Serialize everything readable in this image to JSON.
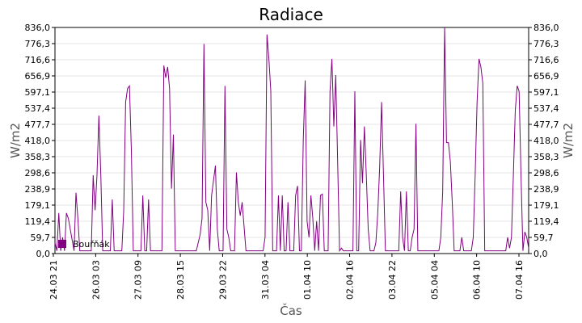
{
  "chart_data": {
    "type": "line",
    "title": "Radiace",
    "xlabel": "Čas",
    "ylabel": "W/m2",
    "ylabel_right": "W/m2",
    "y_ticks": [
      "0,0",
      "59,7",
      "119,4",
      "179,1",
      "238,9",
      "298,6",
      "358,3",
      "418,0",
      "477,7",
      "537,4",
      "597,1",
      "656,9",
      "716,6",
      "776,3",
      "836,0"
    ],
    "ylim": [
      0,
      836
    ],
    "x_ticks": [
      "24.03 21",
      "26.03 03",
      "27.03 09",
      "28.03 15",
      "29.03 22",
      "31.03 04",
      "01.04 10",
      "02.04 16",
      "03.04 22",
      "05.04 04",
      "06.04 10",
      "07.04 16"
    ],
    "grid": true,
    "legend_position": "bottom-left",
    "series": [
      {
        "name": "Bouřňák",
        "color": "#800080",
        "values": [
          40,
          10,
          150,
          10,
          60,
          10,
          150,
          130,
          90,
          50,
          10,
          225,
          130,
          10,
          10,
          10,
          10,
          10,
          10,
          10,
          290,
          160,
          290,
          510,
          290,
          10,
          10,
          10,
          10,
          10,
          200,
          10,
          10,
          10,
          10,
          10,
          160,
          560,
          610,
          620,
          380,
          10,
          10,
          10,
          10,
          10,
          215,
          10,
          10,
          200,
          10,
          10,
          10,
          10,
          10,
          10,
          10,
          695,
          650,
          690,
          610,
          240,
          440,
          10,
          10,
          10,
          10,
          10,
          10,
          10,
          10,
          10,
          10,
          10,
          10,
          40,
          70,
          130,
          775,
          190,
          160,
          10,
          215,
          270,
          325,
          90,
          10,
          10,
          10,
          620,
          90,
          60,
          10,
          10,
          10,
          300,
          190,
          140,
          190,
          100,
          10,
          10,
          10,
          10,
          10,
          10,
          10,
          10,
          10,
          10,
          60,
          810,
          720,
          600,
          10,
          10,
          10,
          215,
          10,
          215,
          10,
          10,
          190,
          10,
          10,
          10,
          215,
          250,
          10,
          10,
          420,
          640,
          120,
          60,
          215,
          130,
          10,
          120,
          10,
          215,
          220,
          10,
          10,
          10,
          600,
          720,
          470,
          660,
          340,
          10,
          20,
          10,
          10,
          10,
          10,
          10,
          10,
          600,
          10,
          10,
          420,
          260,
          470,
          290,
          90,
          10,
          10,
          10,
          40,
          150,
          320,
          560,
          290,
          10,
          10,
          10,
          10,
          10,
          10,
          10,
          10,
          230,
          60,
          10,
          230,
          10,
          10,
          60,
          90,
          480,
          10,
          10,
          10,
          10,
          10,
          10,
          10,
          10,
          10,
          10,
          10,
          10,
          60,
          230,
          836,
          410,
          410,
          340,
          190,
          10,
          10,
          10,
          10,
          60,
          10,
          10,
          10,
          10,
          10,
          60,
          290,
          560,
          720,
          690,
          630,
          10,
          10,
          10,
          10,
          10,
          10,
          10,
          10,
          10,
          10,
          10,
          10,
          60,
          20,
          60,
          290,
          530,
          620,
          600,
          290,
          10,
          80,
          60,
          20
        ]
      }
    ]
  }
}
